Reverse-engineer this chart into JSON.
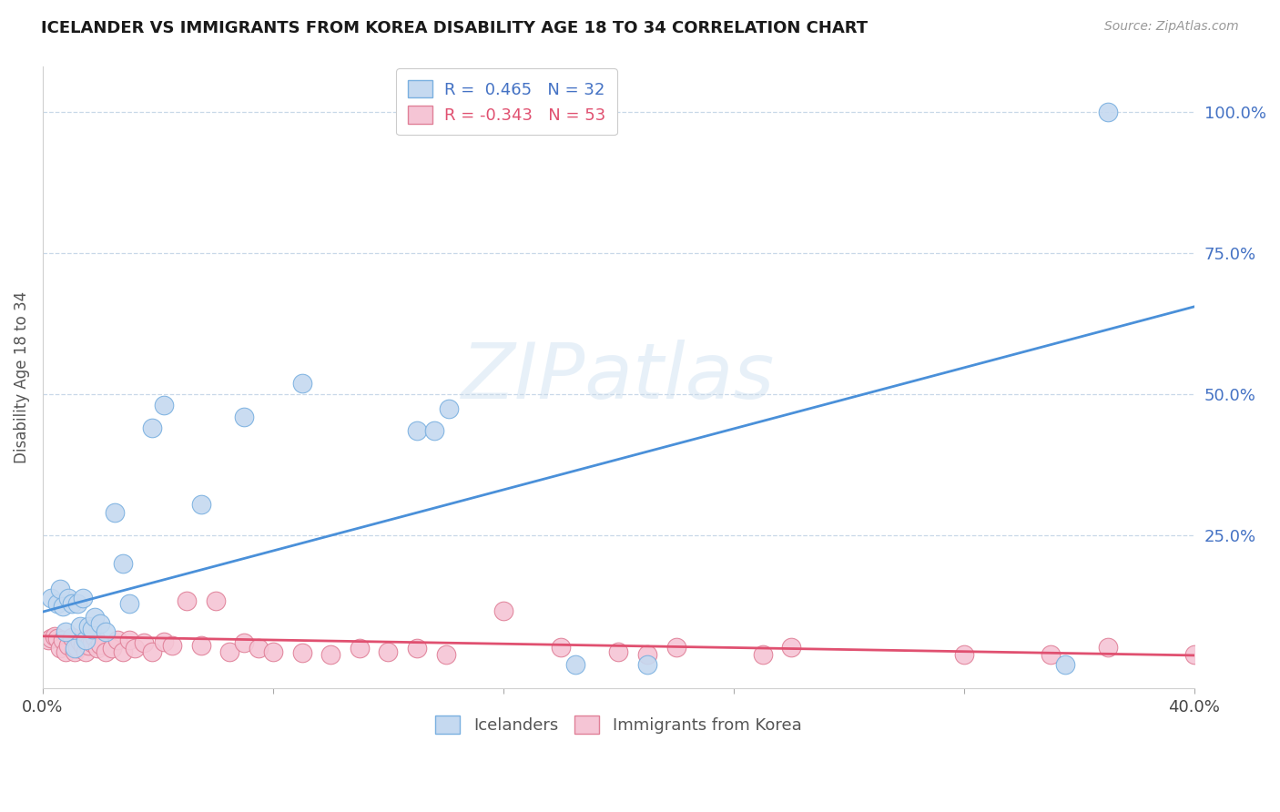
{
  "title": "ICELANDER VS IMMIGRANTS FROM KOREA DISABILITY AGE 18 TO 34 CORRELATION CHART",
  "source": "Source: ZipAtlas.com",
  "ylabel": "Disability Age 18 to 34",
  "legend_label1": "Icelanders",
  "legend_label2": "Immigrants from Korea",
  "r1": 0.465,
  "n1": 32,
  "r2": -0.343,
  "n2": 53,
  "color_blue_fill": "#c5d9f0",
  "color_blue_edge": "#7ab0e0",
  "color_blue_line": "#4a90d9",
  "color_pink_fill": "#f5c5d5",
  "color_pink_edge": "#e08098",
  "color_pink_line": "#e05070",
  "color_blue_text": "#4472c4",
  "color_pink_text": "#e05070",
  "xlim": [
    0.0,
    0.4
  ],
  "ylim": [
    -0.02,
    1.08
  ],
  "ytick_vals": [
    0.25,
    0.5,
    0.75,
    1.0
  ],
  "ytick_labels": [
    "25.0%",
    "50.0%",
    "75.0%",
    "100.0%"
  ],
  "grid_vals": [
    0.25,
    0.5,
    0.75,
    1.0
  ],
  "blue_line_x0": 0.0,
  "blue_line_y0": 0.115,
  "blue_line_x1": 0.4,
  "blue_line_y1": 0.655,
  "pink_line_x0": 0.0,
  "pink_line_y0": 0.072,
  "pink_line_x1": 0.4,
  "pink_line_y1": 0.038,
  "icelander_x": [
    0.003,
    0.005,
    0.006,
    0.007,
    0.008,
    0.009,
    0.01,
    0.011,
    0.012,
    0.013,
    0.014,
    0.015,
    0.016,
    0.017,
    0.018,
    0.02,
    0.022,
    0.025,
    0.028,
    0.03,
    0.038,
    0.042,
    0.055,
    0.07,
    0.09,
    0.13,
    0.136,
    0.141,
    0.185,
    0.21,
    0.355,
    0.37
  ],
  "icelander_y": [
    0.14,
    0.13,
    0.155,
    0.125,
    0.08,
    0.14,
    0.13,
    0.05,
    0.13,
    0.09,
    0.14,
    0.065,
    0.09,
    0.085,
    0.105,
    0.095,
    0.08,
    0.29,
    0.2,
    0.13,
    0.44,
    0.48,
    0.305,
    0.46,
    0.52,
    0.435,
    0.435,
    0.475,
    0.022,
    0.022,
    0.022,
    1.0
  ],
  "korea_x": [
    0.002,
    0.003,
    0.004,
    0.005,
    0.006,
    0.007,
    0.008,
    0.009,
    0.01,
    0.011,
    0.012,
    0.013,
    0.014,
    0.015,
    0.016,
    0.017,
    0.018,
    0.019,
    0.02,
    0.022,
    0.024,
    0.026,
    0.028,
    0.03,
    0.032,
    0.035,
    0.038,
    0.042,
    0.045,
    0.05,
    0.055,
    0.06,
    0.065,
    0.07,
    0.075,
    0.08,
    0.09,
    0.1,
    0.11,
    0.12,
    0.13,
    0.14,
    0.16,
    0.18,
    0.2,
    0.21,
    0.22,
    0.25,
    0.26,
    0.32,
    0.35,
    0.37,
    0.4
  ],
  "korea_y": [
    0.065,
    0.068,
    0.072,
    0.068,
    0.05,
    0.065,
    0.045,
    0.055,
    0.07,
    0.045,
    0.05,
    0.062,
    0.055,
    0.045,
    0.055,
    0.06,
    0.07,
    0.05,
    0.058,
    0.045,
    0.05,
    0.065,
    0.045,
    0.065,
    0.05,
    0.06,
    0.045,
    0.062,
    0.055,
    0.135,
    0.055,
    0.135,
    0.045,
    0.06,
    0.05,
    0.045,
    0.042,
    0.04,
    0.05,
    0.045,
    0.05,
    0.04,
    0.116,
    0.052,
    0.045,
    0.04,
    0.052,
    0.04,
    0.052,
    0.04,
    0.04,
    0.052,
    0.04
  ]
}
